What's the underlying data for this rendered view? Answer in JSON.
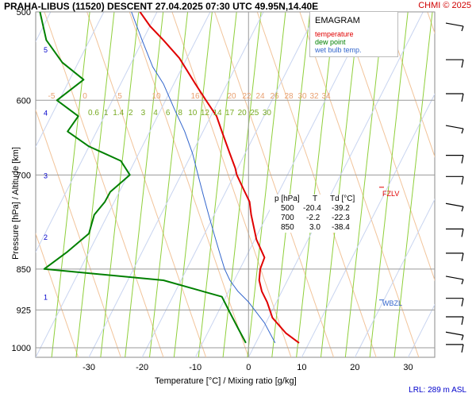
{
  "header": {
    "title": "PRAHA-LIBUS (11520)   DESCENT   27.04.2025 07:30 UTC  49.95N,14.40E",
    "copyright": "CHMI © 2025"
  },
  "legend": {
    "title": "EMAGRAM",
    "items": [
      {
        "label": "temperature",
        "color": "#e00000"
      },
      {
        "label": "dew point",
        "color": "#008000"
      },
      {
        "label": "wet bulb temp.",
        "color": "#3366cc"
      }
    ]
  },
  "table": {
    "headers": [
      "p [hPa]",
      "T",
      "Td [°C]"
    ],
    "rows": [
      [
        "500",
        "-20.4",
        "-39.2"
      ],
      [
        "700",
        "-2.2",
        "-22.3"
      ],
      [
        "850",
        "3.0",
        "-38.4"
      ]
    ]
  },
  "markers": {
    "fzlv": "FZLV",
    "wbzl": "WBZL"
  },
  "footer": {
    "lrl": "LRL: 289 m ASL"
  },
  "chart_data": {
    "type": "line",
    "title": "EMAGRAM",
    "xlabel": "Temperature [°C]  /  Mixing ratio [g/kg]",
    "ylabel": "Pressure [hPa]  /  Altitude [km]",
    "xlim": [
      -40,
      35
    ],
    "ylim": [
      1000,
      500
    ],
    "y_scale": "log",
    "x_ticks": [
      -30,
      -20,
      -10,
      0,
      10,
      20,
      30
    ],
    "x_tick_labels": [
      "-30",
      "-20",
      "-10",
      "0",
      "10",
      "20",
      "30"
    ],
    "y_ticks": [
      500,
      600,
      700,
      850,
      925,
      1000
    ],
    "y_tick_labels": [
      "500",
      "600",
      "700",
      "850",
      "925",
      "1000"
    ],
    "altitude_ticks_km": [
      "1",
      "2",
      "3",
      "4",
      "5"
    ],
    "mixing_ratio_labels": [
      "0.6",
      "1",
      "1.4",
      "2",
      "3",
      "4",
      "6",
      "8",
      "10",
      "12",
      "14",
      "17",
      "20",
      "25",
      "30"
    ],
    "dry_adiabat_labels": [
      "-5",
      "0",
      "5",
      "10",
      "16",
      "20",
      "22",
      "24",
      "26",
      "28",
      "30",
      "32",
      "34"
    ],
    "series": [
      {
        "name": "temperature",
        "color": "#e00000",
        "x": [
          9.5,
          7.0,
          4.5,
          3.5,
          2.5,
          2.0,
          2.2,
          3.0,
          1.5,
          1.0,
          0.5,
          0.2,
          -1.0,
          -2.2,
          -2.5,
          -3.5,
          -5.0,
          -6.0,
          -8.0,
          -10.0,
          -13.0,
          -16.0,
          -18.5,
          -20.4
        ],
        "y": [
          990,
          970,
          940,
          910,
          890,
          870,
          850,
          830,
          800,
          780,
          760,
          740,
          720,
          700,
          690,
          670,
          640,
          620,
          600,
          580,
          550,
          530,
          515,
          500
        ]
      },
      {
        "name": "dew point",
        "color": "#008000",
        "x": [
          -0.5,
          -2.0,
          -3.5,
          -5.0,
          -16.0,
          -38.4,
          -34.0,
          -30.0,
          -29.0,
          -27.0,
          -26.0,
          -22.3,
          -24.0,
          -30.0,
          -34.0,
          -32.0,
          -36.0,
          -31.0,
          -35.0,
          -38.0,
          -39.2
        ],
        "y": [
          990,
          960,
          930,
          900,
          870,
          850,
          820,
          790,
          760,
          740,
          725,
          700,
          680,
          660,
          640,
          620,
          600,
          575,
          555,
          530,
          500
        ]
      },
      {
        "name": "wet bulb temp.",
        "color": "#3366cc",
        "x": [
          5.0,
          3.0,
          0.0,
          -2.0,
          -3.5,
          -4.5,
          -5.5,
          -6.5,
          -7.5,
          -8.5,
          -9.5,
          -10.5,
          -12.0,
          -14.0,
          -16.0,
          -18.0,
          -20.0,
          -22.0
        ],
        "y": [
          990,
          950,
          910,
          890,
          870,
          850,
          820,
          790,
          760,
          730,
          700,
          670,
          640,
          610,
          580,
          560,
          530,
          500
        ]
      }
    ],
    "wind_levels_hpa": [
      510,
      550,
      590,
      630,
      670,
      700,
      740,
      780,
      820,
      860,
      900,
      935,
      965,
      990
    ]
  }
}
